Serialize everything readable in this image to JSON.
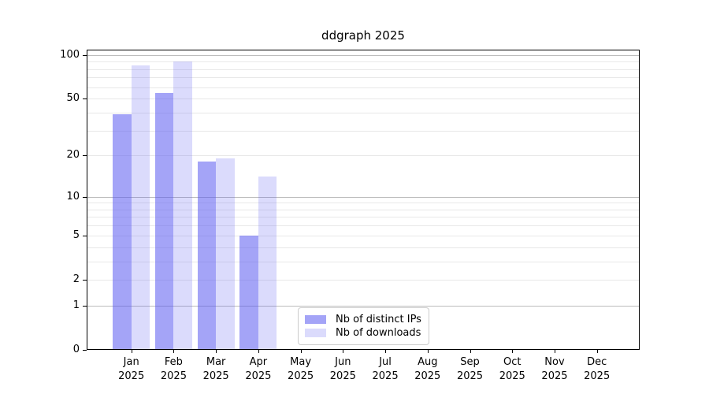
{
  "chart_data": {
    "type": "bar",
    "title": "ddgraph 2025",
    "months": [
      "Jan",
      "Feb",
      "Mar",
      "Apr",
      "May",
      "Jun",
      "Jul",
      "Aug",
      "Sep",
      "Oct",
      "Nov",
      "Dec"
    ],
    "year": "2025",
    "series": [
      {
        "name": "Nb of distinct IPs",
        "color": "rgba(90,90,240,0.55)",
        "values": [
          39,
          55,
          18,
          5,
          null,
          null,
          null,
          null,
          null,
          null,
          null,
          null
        ]
      },
      {
        "name": "Nb of downloads",
        "color": "rgba(90,90,240,0.22)",
        "values": [
          85,
          90,
          19,
          14,
          null,
          null,
          null,
          null,
          null,
          null,
          null,
          null
        ]
      }
    ],
    "yscale": "log10(1+v)",
    "ylim": [
      0,
      109
    ],
    "ytick_values": [
      0,
      1,
      2,
      5,
      10,
      20,
      50,
      100
    ],
    "ytick_labels": [
      "0",
      "1",
      "2",
      "5",
      "10",
      "20",
      "50",
      "100"
    ],
    "major_gridlines": [
      1,
      10,
      100
    ],
    "minor_gridlines": [
      2,
      3,
      4,
      5,
      6,
      7,
      8,
      9,
      20,
      30,
      40,
      50,
      60,
      70,
      80,
      90
    ],
    "grid": "horizontal",
    "legend_position": "lower center"
  },
  "style": {
    "background": "#ffffff",
    "axis_color": "#000000",
    "major_grid_color": "#bcbcbc",
    "minor_grid_color": "#e8e8e8",
    "legend_border_color": "#cccccc"
  }
}
